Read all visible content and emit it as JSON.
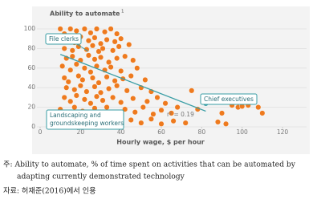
{
  "chart_data": {
    "type": "scatter",
    "y_label": "Ability to automate",
    "y_label_footnote": "1",
    "x_label": "Hourly wage, $ per hour",
    "color": "#ee7a1e",
    "xlim": [
      0,
      120
    ],
    "xticks": [
      0,
      20,
      40,
      60,
      80,
      100,
      120
    ],
    "ylim": [
      0,
      100
    ],
    "yticks": [
      0,
      20,
      40,
      60,
      80,
      100
    ],
    "grid": true,
    "x": [
      10,
      12,
      15,
      18,
      22,
      25,
      28,
      32,
      35,
      38,
      11,
      14,
      17,
      20,
      24,
      27,
      30,
      33,
      37,
      40,
      12,
      16,
      19,
      23,
      26,
      29,
      31,
      36,
      39,
      44,
      13,
      16,
      20,
      24,
      27,
      30,
      34,
      38,
      42,
      46,
      11,
      15,
      18,
      22,
      25,
      28,
      32,
      35,
      40,
      48,
      12,
      14,
      19,
      21,
      26,
      29,
      33,
      37,
      41,
      45,
      52,
      13,
      17,
      20,
      23,
      27,
      30,
      34,
      38,
      43,
      50,
      55,
      12,
      15,
      18,
      22,
      25,
      28,
      31,
      36,
      40,
      46,
      53,
      58,
      62,
      10,
      14,
      17,
      21,
      24,
      27,
      30,
      33,
      37,
      42,
      47,
      51,
      56,
      60,
      65,
      68,
      12,
      16,
      19,
      23,
      26,
      29,
      32,
      36,
      40,
      45,
      50,
      55,
      60,
      66,
      72,
      75,
      85,
      78,
      90,
      95,
      98,
      100,
      103,
      108,
      110,
      88,
      92
    ],
    "values": [
      100,
      95,
      100,
      98,
      100,
      96,
      100,
      97,
      100,
      95,
      88,
      90,
      86,
      92,
      88,
      91,
      85,
      89,
      87,
      90,
      80,
      78,
      82,
      79,
      83,
      77,
      80,
      78,
      82,
      84,
      70,
      72,
      68,
      73,
      69,
      71,
      66,
      70,
      72,
      68,
      62,
      58,
      64,
      60,
      56,
      62,
      58,
      61,
      57,
      60,
      50,
      46,
      52,
      48,
      50,
      45,
      51,
      47,
      49,
      52,
      48,
      40,
      38,
      42,
      36,
      41,
      35,
      39,
      42,
      37,
      40,
      36,
      30,
      26,
      32,
      28,
      24,
      31,
      27,
      30,
      25,
      29,
      26,
      30,
      24,
      18,
      14,
      20,
      16,
      12,
      19,
      15,
      20,
      13,
      18,
      15,
      20,
      13,
      17,
      14,
      20,
      6,
      4,
      8,
      2,
      6,
      3,
      8,
      5,
      2,
      7,
      4,
      8,
      3,
      6,
      4,
      37,
      31,
      18,
      14,
      22,
      20,
      21,
      22,
      20,
      14,
      5,
      3
    ],
    "trendline": {
      "color": "#3a9ea5",
      "x": [
        10,
        82
      ],
      "values": [
        74,
        16
      ]
    },
    "r_squared_label": "r² = 0.19",
    "highlight": {
      "name": "Chief executives",
      "x": 82,
      "value": 24,
      "color": "#3a9ea5"
    },
    "annotations": {
      "file_clerks": "File clerks",
      "landscaping": [
        "Landscaping and",
        "groundskeeping workers"
      ]
    }
  },
  "note": {
    "lines": [
      "주: Ability to automate, % of time spent on activities that can be automated by",
      "adapting currently demonstrated technology"
    ],
    "source": "자료: 허재준(2016)에서 인용"
  }
}
